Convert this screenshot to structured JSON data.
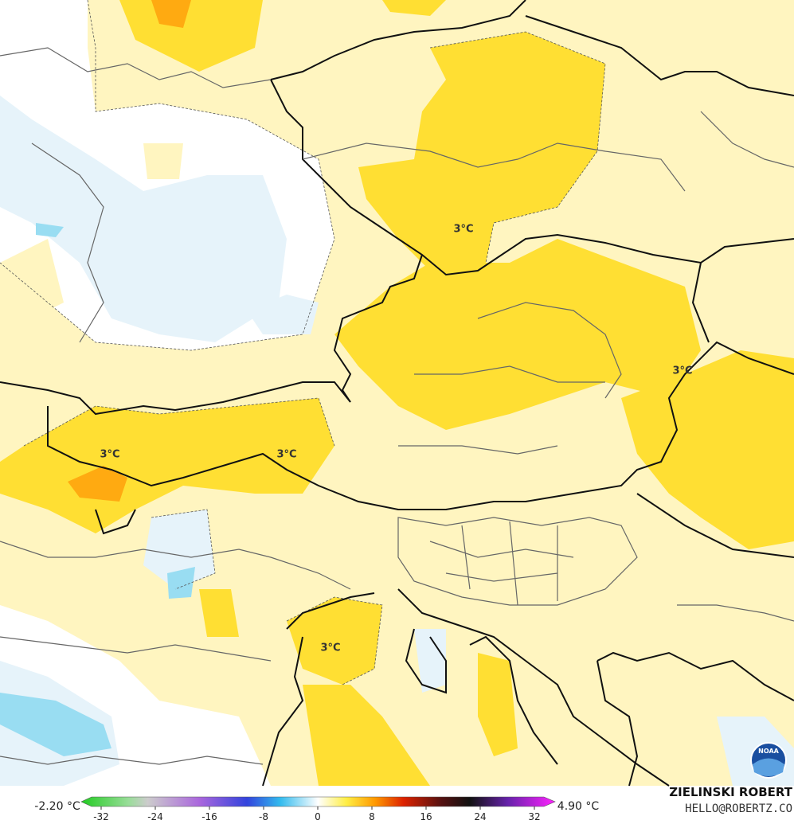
{
  "map": {
    "contour_labels": [
      "3°C",
      "3°C",
      "3°C",
      "3°C",
      "3°C"
    ],
    "colorbar": {
      "min_label": "-2.20 °C",
      "max_label": "4.90 °C",
      "ticks": [
        -32,
        -24,
        -16,
        -8,
        0,
        8,
        16,
        24,
        32
      ]
    },
    "credit": {
      "name": "ZIELINSKI ROBERT",
      "email": "HELLO@ROBERTZ.CO"
    },
    "logo": "NOAA"
  }
}
